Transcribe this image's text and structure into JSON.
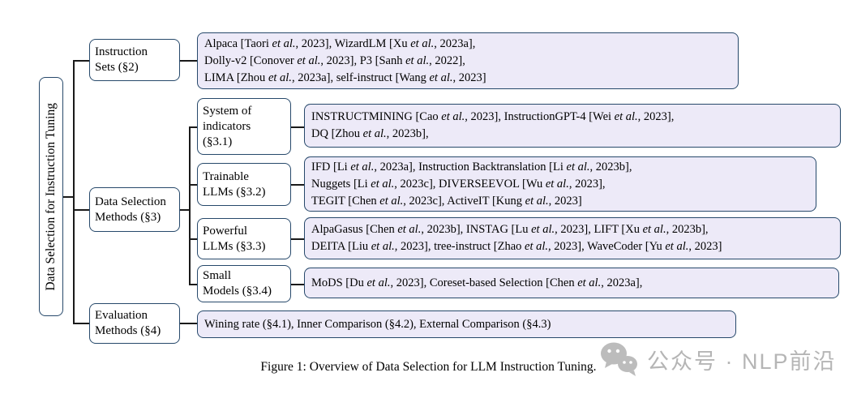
{
  "figure": {
    "root_label": "Data Selection for Instruction Tuning",
    "caption": "Figure 1: Overview of Data Selection for LLM Instruction Tuning."
  },
  "colors": {
    "box_border": "#27496b",
    "leaf_fill": "#edeaf8",
    "connector": "#1a1a1a",
    "watermark_gray": "#b5b5b5"
  },
  "nodes": {
    "instruction_sets": {
      "lines": [
        "Instruction",
        "Sets (§2)"
      ]
    },
    "data_selection_methods": {
      "lines": [
        "Data Selection",
        "Methods (§3)"
      ]
    },
    "evaluation_methods": {
      "lines": [
        "Evaluation",
        "Methods (§4)"
      ]
    },
    "system_of_indicators": {
      "lines": [
        "System of",
        "indicators",
        "(§3.1)"
      ]
    },
    "trainable_llms": {
      "lines": [
        "Trainable",
        "LLMs (§3.2)"
      ]
    },
    "powerful_llms": {
      "lines": [
        "Powerful",
        "LLMs (§3.3)"
      ]
    },
    "small_models": {
      "lines": [
        "Small",
        "Models (§3.4)"
      ]
    }
  },
  "leaves": {
    "instruction_sets": {
      "lines": [
        "Alpaca [Taori et al., 2023], WizardLM [Xu et al., 2023a],",
        "Dolly-v2 [Conover et al., 2023], P3 [Sanh et al., 2022],",
        "LIMA [Zhou et al., 2023a], self-instruct [Wang et al., 2023]"
      ]
    },
    "system_of_indicators": {
      "lines": [
        "INSTRUCTMINING [Cao et al., 2023],  InstructionGPT-4 [Wei et al., 2023],",
        "DQ [Zhou et al., 2023b],"
      ]
    },
    "trainable_llms": {
      "lines": [
        "IFD [Li et al., 2023a], Instruction Backtranslation [Li et al., 2023b],",
        "Nuggets [Li et al., 2023c], DIVERSEEVOL [Wu et al., 2023],",
        "TEGIT [Chen et al., 2023c], ActiveIT [Kung et al., 2023]"
      ]
    },
    "powerful_llms": {
      "lines": [
        "AlpaGasus [Chen et al., 2023b], INSTAG [Lu et al., 2023], LIFT [Xu et al., 2023b],",
        "DEITA [Liu et al., 2023], tree-instruct [Zhao et al., 2023],  WaveCoder [Yu et al., 2023]"
      ]
    },
    "small_models": {
      "lines": [
        "MoDS [Du et al., 2023],  Coreset-based Selection [Chen et al., 2023a],"
      ]
    },
    "evaluation_methods": {
      "lines": [
        "Wining rate (§4.1), Inner Comparison (§4.2), External Comparison (§4.3)"
      ]
    }
  },
  "watermark": {
    "text": "公众号 · NLP前沿",
    "icon": "wechat-icon"
  }
}
